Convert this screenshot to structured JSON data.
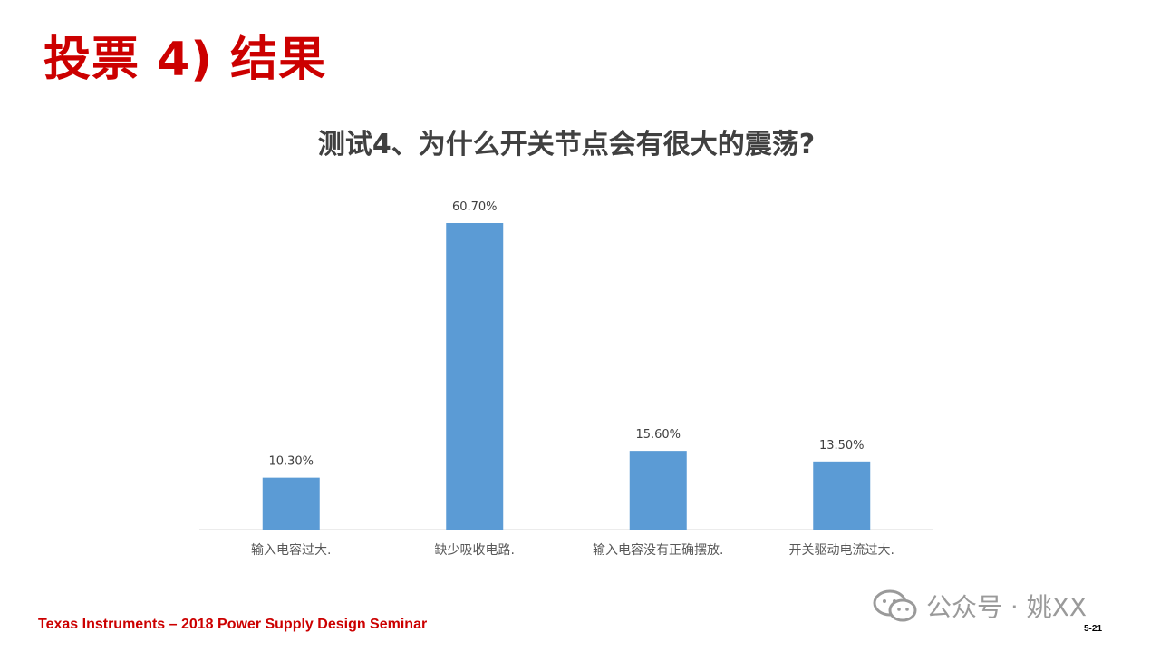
{
  "slide": {
    "title": "投票 4) 结果",
    "footer": "Texas Instruments – 2018 Power Supply Design Seminar",
    "page_number": "5-21",
    "watermark_text": "公众号 · 姚XX",
    "watermark_icon": "wechat-icon"
  },
  "colors": {
    "title": "#cc0000",
    "bar": "#5b9bd5",
    "axis_text": "#595959"
  },
  "chart_data": {
    "type": "bar",
    "title": "测试4、为什么开关节点会有很大的震荡?",
    "categories": [
      "输入电容过大.",
      "缺少吸收电路.",
      "输入电容没有正确摆放.",
      "开关驱动电流过大."
    ],
    "values": [
      10.3,
      60.7,
      15.6,
      13.5
    ],
    "data_labels": [
      "10.30%",
      "60.70%",
      "15.60%",
      "13.50%"
    ],
    "ylim": [
      0,
      60.7
    ],
    "grid": false,
    "legend": "none"
  }
}
